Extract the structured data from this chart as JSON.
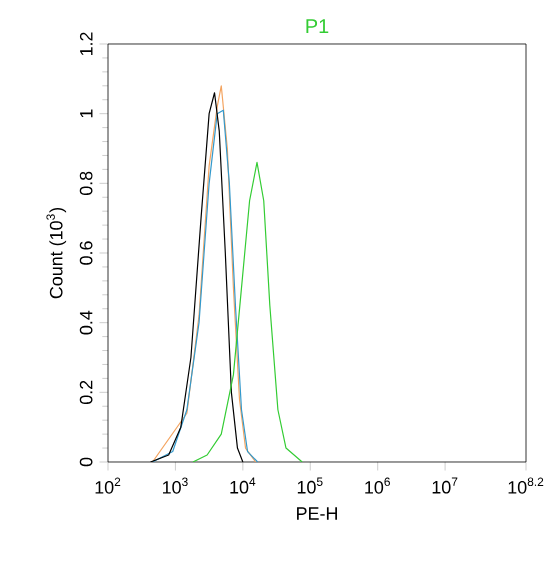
{
  "chart_data": {
    "type": "line",
    "title": "P1",
    "xlabel": "PE-H",
    "ylabel": "Count (10$^{3}$)",
    "log": "x",
    "marker": "none",
    "line_style": "solid",
    "xlim": [
      100,
      158489319
    ],
    "ylim": [
      0,
      1.2
    ],
    "xticks": [
      {
        "value": 100,
        "label": "10$^{2}$"
      },
      {
        "value": 1000,
        "label": "10$^{3}$"
      },
      {
        "value": 10000,
        "label": "10$^{4}$"
      },
      {
        "value": 100000,
        "label": "10$^{5}$"
      },
      {
        "value": 1000000,
        "label": "10$^{6}$"
      },
      {
        "value": 10000000,
        "label": "10$^{7}$"
      },
      {
        "value": 158489319,
        "label": "10$^{8.2}$"
      }
    ],
    "yticks": [
      0,
      0.2,
      0.4,
      0.6,
      0.8,
      1,
      1.2
    ],
    "series": [
      {
        "color": "#f4a460",
        "x": [
          457,
          912,
          1479,
          2239,
          3162,
          4169,
          4786,
          5888,
          7244,
          8913,
          10965,
          15488
        ],
        "values": [
          0,
          null,
          0.14,
          0.42,
          0.85,
          1.02,
          1.08,
          0.9,
          0.5,
          0.18,
          0.04,
          0
        ]
      },
      {
        "color": "#3399cc",
        "x": [
          457,
          912,
          1479,
          2239,
          3162,
          4169,
          5129,
          6310,
          7762,
          9550,
          11749,
          16596
        ],
        "values": [
          0,
          0.03,
          0.15,
          0.4,
          0.8,
          1.0,
          1.01,
          0.8,
          0.45,
          0.15,
          0.03,
          0
        ]
      },
      {
        "color": "#000000",
        "x": [
          427,
          794,
          1202,
          1698,
          2399,
          3162,
          3802,
          4467,
          5495,
          6761,
          8318,
          10000
        ],
        "values": [
          0,
          0.02,
          0.1,
          0.3,
          0.7,
          1.0,
          1.06,
          0.95,
          0.6,
          0.2,
          0.04,
          0
        ]
      },
      {
        "color": "#33cc33",
        "x": [
          1820,
          2951,
          4786,
          7244,
          9550,
          12589,
          16218,
          20417,
          25119,
          33113,
          43652,
          75858
        ],
        "values": [
          0,
          0.02,
          0.08,
          0.25,
          0.5,
          0.75,
          0.86,
          0.75,
          0.45,
          0.15,
          0.04,
          0
        ]
      }
    ]
  }
}
